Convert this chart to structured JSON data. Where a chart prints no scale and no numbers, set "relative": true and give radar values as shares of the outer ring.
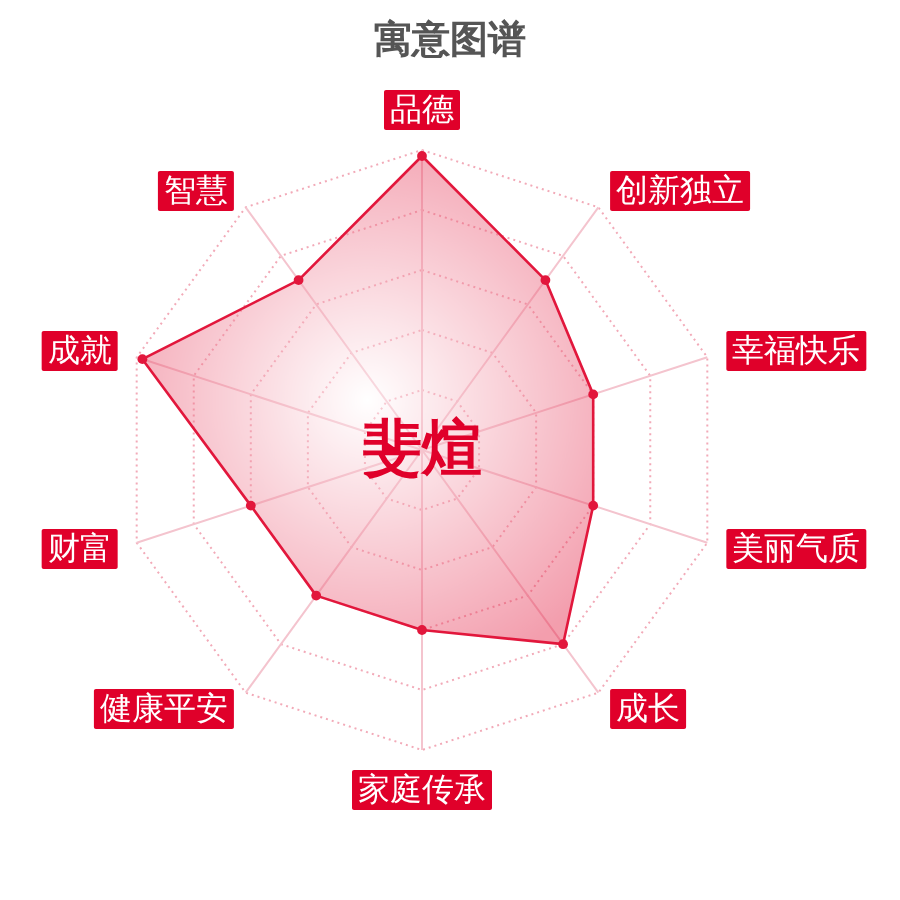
{
  "chart_data": {
    "type": "radar",
    "title": "寓意图谱",
    "categories": [
      "品德",
      "创新独立",
      "幸福快乐",
      "美丽气质",
      "成长",
      "家庭传承",
      "健康平安",
      "财富",
      "成就",
      "智慧"
    ],
    "relative": true,
    "series": [
      {
        "color": "#e2173c",
        "values": [
          0.98,
          0.7,
          0.6,
          0.6,
          0.8,
          0.6,
          0.6,
          0.6,
          0.98,
          0.7
        ]
      }
    ],
    "grid": true,
    "marker": "circle",
    "annotations": [
      "斐煊"
    ]
  }
}
